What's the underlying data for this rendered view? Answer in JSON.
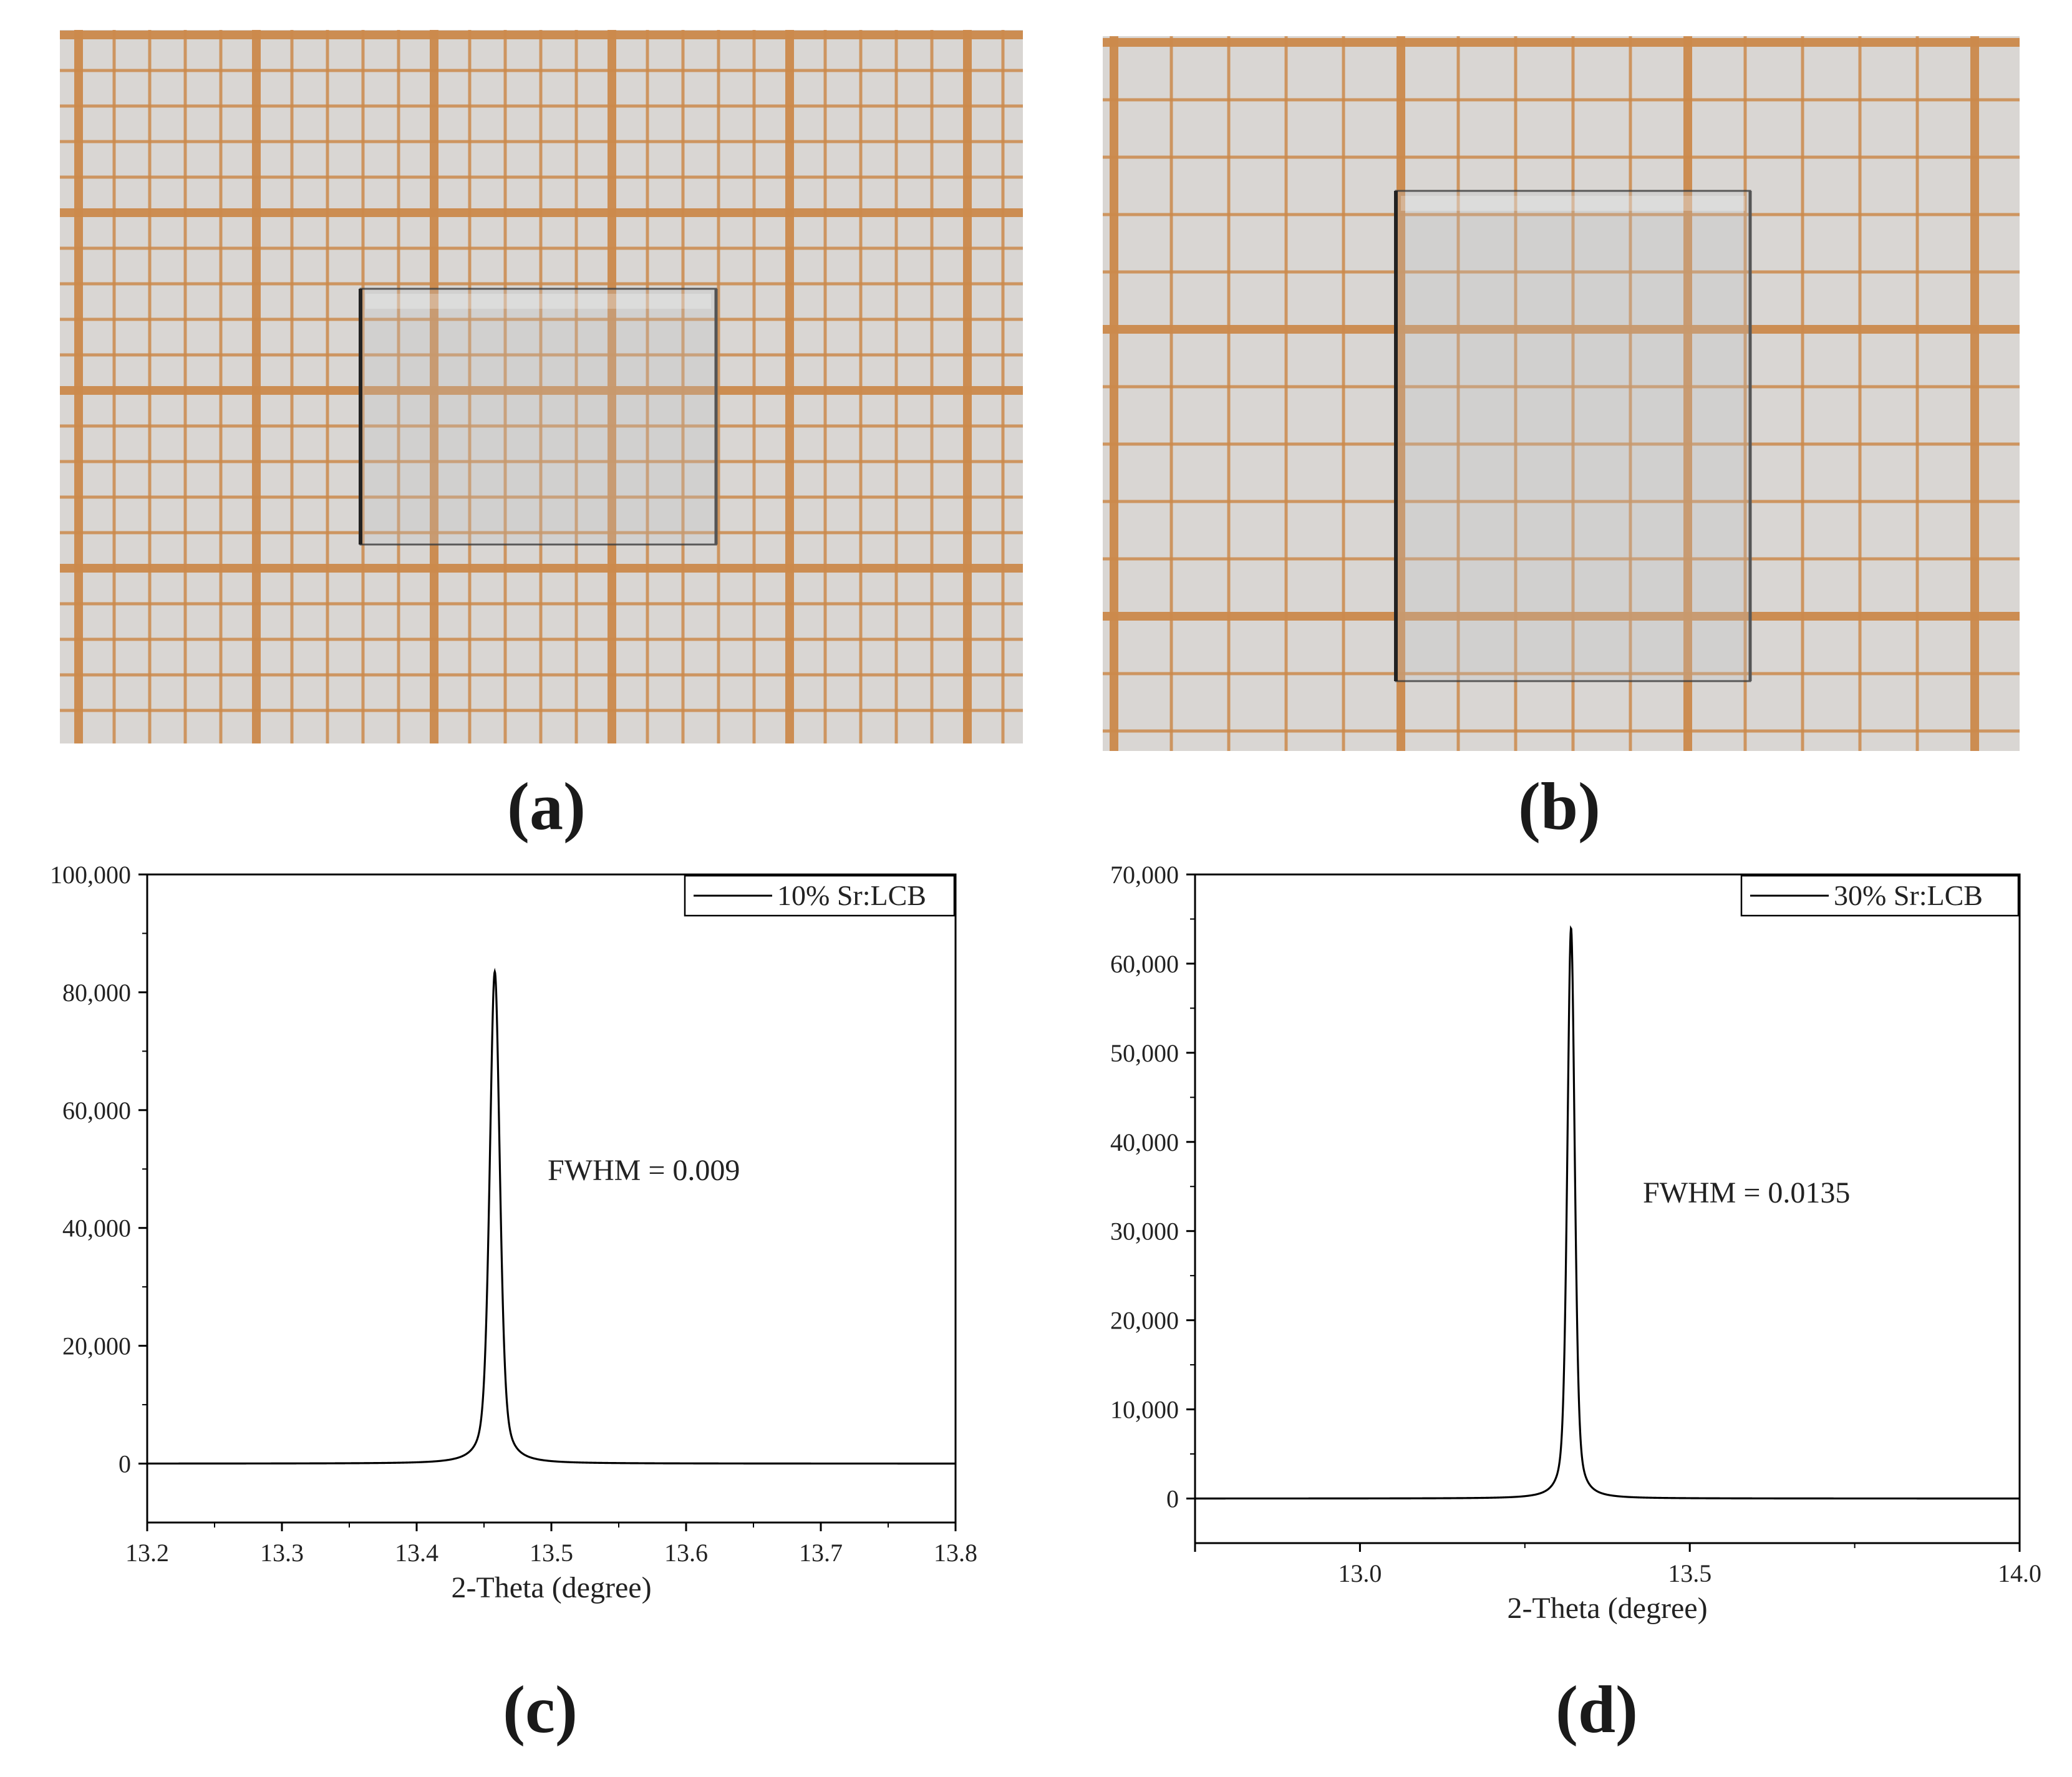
{
  "panels": {
    "a": "(a)",
    "b": "(b)",
    "c": "(c)",
    "d": "(d)"
  },
  "photo_colors": {
    "paper": "#d9d6d3",
    "grid_line": "#cc8a4c",
    "crystal_edge": "#3a3a3a"
  },
  "chart_data": [
    {
      "type": "line",
      "title": "",
      "xlabel": "2-Theta (degree)",
      "ylabel": "",
      "xlim": [
        13.2,
        13.8
      ],
      "ylim": [
        -10000,
        100000
      ],
      "xticks": [
        13.2,
        13.3,
        13.4,
        13.5,
        13.6,
        13.7,
        13.8
      ],
      "xtick_labels": [
        "13.2",
        "13.3",
        "13.4",
        "13.5",
        "13.6",
        "13.7",
        "13.8"
      ],
      "yticks": [
        0,
        20000,
        40000,
        60000,
        80000,
        100000
      ],
      "ytick_labels": [
        "0",
        "20,000",
        "40,000",
        "60,000",
        "80,000",
        "100,000"
      ],
      "legend": "top-right",
      "series": [
        {
          "name": "10% Sr:LCB",
          "peak_center": 13.458,
          "peak_height": 83500,
          "fwhm": 0.009,
          "baseline": 0
        }
      ],
      "annotation": "FWHM = 0.009",
      "color": "#000000"
    },
    {
      "type": "line",
      "title": "",
      "xlabel": "2-Theta (degree)",
      "ylabel": "",
      "xlim": [
        12.75,
        14.0
      ],
      "ylim": [
        -5000,
        70000
      ],
      "xticks": [
        13.0,
        13.5,
        14.0
      ],
      "xtick_labels": [
        "13.0",
        "13.5",
        "14.0"
      ],
      "yticks": [
        0,
        10000,
        20000,
        30000,
        40000,
        50000,
        60000,
        70000
      ],
      "ytick_labels": [
        "0",
        "10,000",
        "20,000",
        "30,000",
        "40,000",
        "50,000",
        "60,000",
        "70,000"
      ],
      "legend": "top-right",
      "series": [
        {
          "name": "30% Sr:LCB",
          "peak_center": 13.32,
          "peak_height": 64000,
          "fwhm": 0.0135,
          "baseline": 0
        }
      ],
      "annotation": "FWHM = 0.0135",
      "color": "#000000"
    }
  ]
}
